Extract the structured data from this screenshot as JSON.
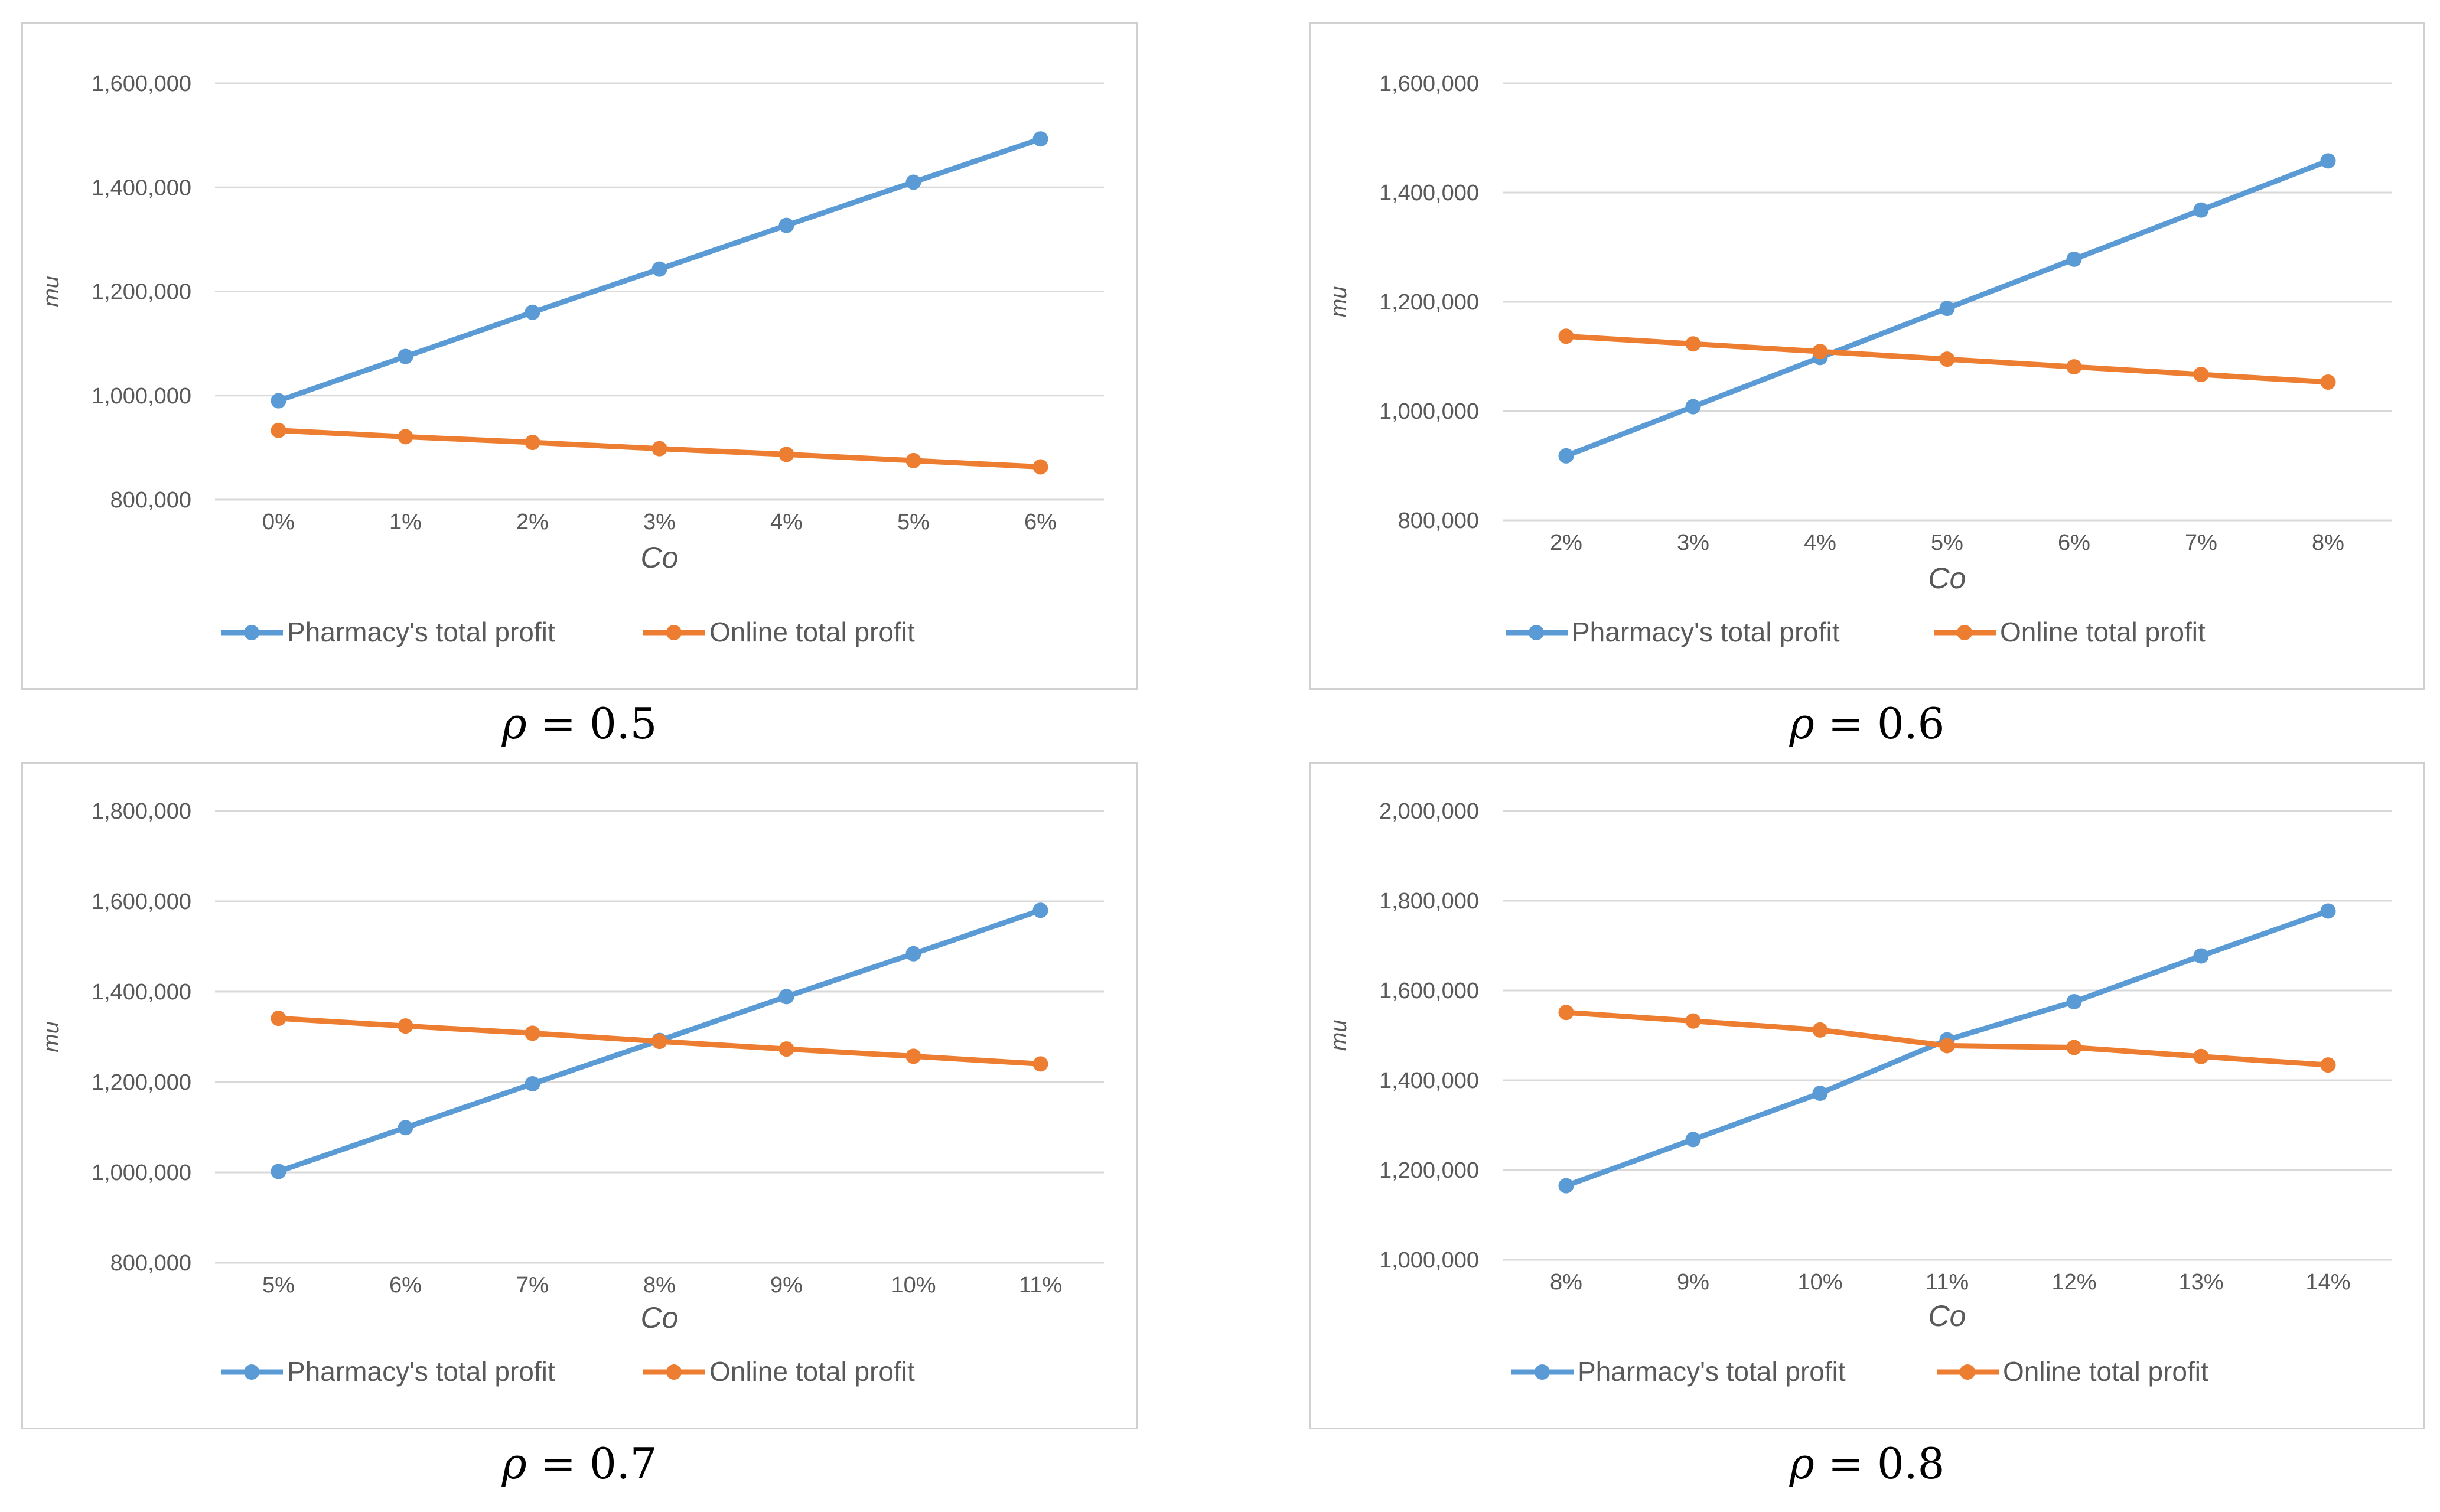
{
  "chart_data": [
    {
      "type": "line",
      "caption_symbol": "ρ",
      "caption_value": "= 0.5",
      "xlabel": "Co",
      "ylabel": "mu",
      "categories": [
        "0%",
        "1%",
        "2%",
        "3%",
        "4%",
        "5%",
        "6%"
      ],
      "ylim": [
        800000,
        1600000
      ],
      "yticks": [
        "800,000",
        "1,000,000",
        "1,200,000",
        "1,400,000",
        "1,600,000"
      ],
      "grid": true,
      "legend_position": "bottom",
      "series": [
        {
          "name": "Pharmacy's total profit",
          "color": "#5B9BD5",
          "values": [
            990000,
            1075000,
            1160000,
            1243000,
            1327000,
            1410000,
            1493000
          ]
        },
        {
          "name": "Online total profit",
          "color": "#ED7D31",
          "values": [
            933000,
            921000,
            910000,
            898000,
            887000,
            875000,
            863000
          ]
        }
      ]
    },
    {
      "type": "line",
      "caption_symbol": "ρ",
      "caption_value": "= 0.6",
      "xlabel": "Co",
      "ylabel": "mu",
      "categories": [
        "2%",
        "3%",
        "4%",
        "5%",
        "6%",
        "7%",
        "8%"
      ],
      "ylim": [
        800000,
        1600000
      ],
      "yticks": [
        "800,000",
        "1,000,000",
        "1,200,000",
        "1,400,000",
        "1,600,000"
      ],
      "grid": true,
      "legend_position": "bottom",
      "series": [
        {
          "name": "Pharmacy's total profit",
          "color": "#5B9BD5",
          "values": [
            918000,
            1008000,
            1098000,
            1188000,
            1278000,
            1368000,
            1458000
          ]
        },
        {
          "name": "Online total profit",
          "color": "#ED7D31",
          "values": [
            1137000,
            1123000,
            1109000,
            1095000,
            1081000,
            1067000,
            1053000
          ]
        }
      ]
    },
    {
      "type": "line",
      "caption_symbol": "ρ",
      "caption_value": "= 0.7",
      "xlabel": "Co",
      "ylabel": "mu",
      "categories": [
        "5%",
        "6%",
        "7%",
        "8%",
        "9%",
        "10%",
        "11%"
      ],
      "ylim": [
        800000,
        1800000
      ],
      "yticks": [
        "800,000",
        "1,000,000",
        "1,200,000",
        "1,400,000",
        "1,600,000",
        "1,800,000"
      ],
      "grid": true,
      "legend_position": "bottom",
      "series": [
        {
          "name": "Pharmacy's total profit",
          "color": "#5B9BD5",
          "values": [
            1002000,
            1099000,
            1196000,
            1292000,
            1389000,
            1484000,
            1580000
          ]
        },
        {
          "name": "Online total profit",
          "color": "#ED7D31",
          "values": [
            1341000,
            1324000,
            1308000,
            1290000,
            1273000,
            1257000,
            1240000
          ]
        }
      ]
    },
    {
      "type": "line",
      "caption_symbol": "ρ",
      "caption_value": "= 0.8",
      "xlabel": "Co",
      "ylabel": "mu",
      "categories": [
        "8%",
        "9%",
        "10%",
        "11%",
        "12%",
        "13%",
        "14%"
      ],
      "ylim": [
        1000000,
        2000000
      ],
      "yticks": [
        "1,000,000",
        "1,200,000",
        "1,400,000",
        "1,600,000",
        "1,800,000",
        "2,000,000"
      ],
      "grid": true,
      "legend_position": "bottom",
      "series": [
        {
          "name": "Pharmacy's total profit",
          "color": "#5B9BD5",
          "values": [
            1165000,
            1268000,
            1371000,
            1490000,
            1575000,
            1677000,
            1777000
          ]
        },
        {
          "name": "Online total profit",
          "color": "#ED7D31",
          "values": [
            1551000,
            1532000,
            1512000,
            1477000,
            1473000,
            1453000,
            1434000
          ]
        }
      ]
    }
  ]
}
